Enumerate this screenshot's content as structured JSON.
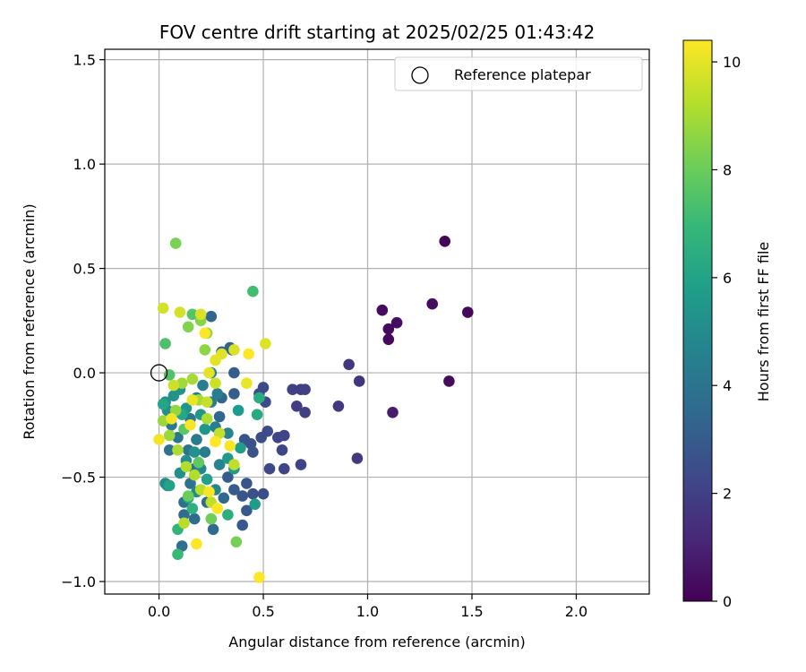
{
  "chart_data": {
    "type": "scatter",
    "title": "FOV centre drift starting at 2025/02/25 01:43:42",
    "xlabel": "Angular distance from reference (arcmin)",
    "ylabel": "Rotation from reference (arcmin)",
    "xlim": [
      -0.26,
      2.35
    ],
    "ylim": [
      -1.06,
      1.55
    ],
    "xticks": [
      0.0,
      0.5,
      1.0,
      1.5,
      2.0
    ],
    "xtick_labels": [
      "0.0",
      "0.5",
      "1.0",
      "1.5",
      "2.0"
    ],
    "yticks": [
      -1.0,
      -0.5,
      0.0,
      0.5,
      1.0,
      1.5
    ],
    "ytick_labels": [
      "−1.0",
      "−0.5",
      "0.0",
      "0.5",
      "1.0",
      "1.5"
    ],
    "grid": true,
    "legend_position": "top-right",
    "legend_entries": [
      "Reference platepar"
    ],
    "reference_point": {
      "x": 0.0,
      "y": 0.0,
      "label": "Reference platepar"
    },
    "colorbar": {
      "label": "Hours from first FF file",
      "colormap": "viridis",
      "range": [
        0,
        10.4
      ],
      "ticks": [
        0,
        2,
        4,
        6,
        8,
        10
      ],
      "tick_labels": [
        "0",
        "2",
        "4",
        "6",
        "8",
        "10"
      ],
      "colors": [
        "#440154",
        "#482878",
        "#3e4989",
        "#31688e",
        "#26828e",
        "#1f9e89",
        "#35b779",
        "#6ece58",
        "#b5de2b",
        "#fde725"
      ]
    },
    "marker_size": 6.3,
    "points": [
      {
        "x": 1.37,
        "y": 0.63,
        "hours": 0.1
      },
      {
        "x": 1.48,
        "y": 0.29,
        "hours": 0.2
      },
      {
        "x": 1.31,
        "y": 0.33,
        "hours": 0.3
      },
      {
        "x": 1.07,
        "y": 0.3,
        "hours": 0.3
      },
      {
        "x": 1.14,
        "y": 0.24,
        "hours": 0.4
      },
      {
        "x": 1.1,
        "y": 0.21,
        "hours": 0.3
      },
      {
        "x": 1.1,
        "y": 0.16,
        "hours": 0.2
      },
      {
        "x": 1.39,
        "y": -0.04,
        "hours": 0.3
      },
      {
        "x": 1.12,
        "y": -0.19,
        "hours": 0.8
      },
      {
        "x": 0.91,
        "y": 0.04,
        "hours": 1.6
      },
      {
        "x": 0.96,
        "y": -0.04,
        "hours": 1.6
      },
      {
        "x": 0.86,
        "y": -0.16,
        "hours": 1.7
      },
      {
        "x": 0.95,
        "y": -0.41,
        "hours": 1.8
      },
      {
        "x": 0.68,
        "y": -0.08,
        "hours": 1.9
      },
      {
        "x": 0.7,
        "y": -0.08,
        "hours": 2.0
      },
      {
        "x": 0.64,
        "y": -0.08,
        "hours": 2.0
      },
      {
        "x": 0.66,
        "y": -0.16,
        "hours": 1.9
      },
      {
        "x": 0.7,
        "y": -0.19,
        "hours": 2.0
      },
      {
        "x": 0.68,
        "y": -0.44,
        "hours": 2.1
      },
      {
        "x": 0.6,
        "y": -0.3,
        "hours": 2.1
      },
      {
        "x": 0.57,
        "y": -0.31,
        "hours": 2.2
      },
      {
        "x": 0.59,
        "y": -0.37,
        "hours": 2.2
      },
      {
        "x": 0.6,
        "y": -0.46,
        "hours": 2.2
      },
      {
        "x": 0.53,
        "y": -0.46,
        "hours": 2.3
      },
      {
        "x": 0.5,
        "y": -0.07,
        "hours": 2.3
      },
      {
        "x": 0.48,
        "y": -0.1,
        "hours": 2.4
      },
      {
        "x": 0.51,
        "y": -0.14,
        "hours": 2.4
      },
      {
        "x": 0.52,
        "y": -0.28,
        "hours": 2.4
      },
      {
        "x": 0.49,
        "y": -0.31,
        "hours": 2.5
      },
      {
        "x": 0.5,
        "y": -0.58,
        "hours": 2.5
      },
      {
        "x": 0.45,
        "y": -0.58,
        "hours": 2.6
      },
      {
        "x": 0.44,
        "y": -0.34,
        "hours": 2.6
      },
      {
        "x": 0.41,
        "y": -0.32,
        "hours": 2.7
      },
      {
        "x": 0.45,
        "y": -0.38,
        "hours": 2.7
      },
      {
        "x": 0.42,
        "y": -0.53,
        "hours": 2.8
      },
      {
        "x": 0.4,
        "y": -0.59,
        "hours": 2.8
      },
      {
        "x": 0.42,
        "y": -0.66,
        "hours": 2.9
      },
      {
        "x": 0.4,
        "y": -0.73,
        "hours": 2.9
      },
      {
        "x": 0.36,
        "y": -0.56,
        "hours": 3.0
      },
      {
        "x": 0.33,
        "y": -0.5,
        "hours": 3.0
      },
      {
        "x": 0.36,
        "y": -0.1,
        "hours": 3.1
      },
      {
        "x": 0.36,
        "y": 0.0,
        "hours": 3.1
      },
      {
        "x": 0.35,
        "y": 0.11,
        "hours": 3.2
      },
      {
        "x": 0.3,
        "y": 0.1,
        "hours": 3.3
      },
      {
        "x": 0.34,
        "y": 0.12,
        "hours": 3.3
      },
      {
        "x": 0.25,
        "y": 0.27,
        "hours": 3.4
      },
      {
        "x": 0.3,
        "y": -0.12,
        "hours": 3.4
      },
      {
        "x": 0.29,
        "y": -0.21,
        "hours": 3.5
      },
      {
        "x": 0.31,
        "y": -0.6,
        "hours": 3.5
      },
      {
        "x": 0.26,
        "y": -0.75,
        "hours": 3.6
      },
      {
        "x": 0.23,
        "y": -0.62,
        "hours": 3.6
      },
      {
        "x": 0.17,
        "y": -0.7,
        "hours": 3.7
      },
      {
        "x": 0.12,
        "y": -0.68,
        "hours": 3.7
      },
      {
        "x": 0.11,
        "y": -0.83,
        "hours": 3.8
      },
      {
        "x": 0.12,
        "y": -0.62,
        "hours": 3.8
      },
      {
        "x": 0.15,
        "y": -0.53,
        "hours": 3.9
      },
      {
        "x": 0.17,
        "y": -0.46,
        "hours": 3.9
      },
      {
        "x": 0.14,
        "y": -0.37,
        "hours": 4.0
      },
      {
        "x": 0.05,
        "y": -0.37,
        "hours": 4.0
      },
      {
        "x": 0.09,
        "y": -0.31,
        "hours": 4.1
      },
      {
        "x": 0.06,
        "y": -0.25,
        "hours": 4.2
      },
      {
        "x": 0.15,
        "y": -0.22,
        "hours": 4.2
      },
      {
        "x": 0.18,
        "y": -0.32,
        "hours": 4.3
      },
      {
        "x": 0.22,
        "y": -0.38,
        "hours": 4.3
      },
      {
        "x": 0.25,
        "y": -0.14,
        "hours": 4.4
      },
      {
        "x": 0.28,
        "y": -0.1,
        "hours": 4.4
      },
      {
        "x": 0.21,
        "y": -0.06,
        "hours": 4.5
      },
      {
        "x": 0.18,
        "y": -0.12,
        "hours": 4.5
      },
      {
        "x": 0.25,
        "y": 0.0,
        "hours": 4.6
      },
      {
        "x": 0.27,
        "y": -0.26,
        "hours": 4.6
      },
      {
        "x": 0.33,
        "y": -0.29,
        "hours": 4.7
      },
      {
        "x": 0.29,
        "y": -0.44,
        "hours": 4.7
      },
      {
        "x": 0.2,
        "y": -0.46,
        "hours": 4.8
      },
      {
        "x": 0.27,
        "y": -0.56,
        "hours": 4.8
      },
      {
        "x": 0.18,
        "y": -0.57,
        "hours": 4.9
      },
      {
        "x": 0.03,
        "y": -0.53,
        "hours": 5.0
      },
      {
        "x": 0.04,
        "y": -0.54,
        "hours": 5.0
      },
      {
        "x": 0.1,
        "y": -0.48,
        "hours": 5.1
      },
      {
        "x": 0.13,
        "y": -0.42,
        "hours": 5.1
      },
      {
        "x": 0.17,
        "y": -0.38,
        "hours": 5.2
      },
      {
        "x": 0.04,
        "y": -0.18,
        "hours": 5.2
      },
      {
        "x": 0.03,
        "y": -0.14,
        "hours": 5.3
      },
      {
        "x": 0.07,
        "y": -0.11,
        "hours": 5.3
      },
      {
        "x": 0.1,
        "y": -0.08,
        "hours": 5.4
      },
      {
        "x": 0.13,
        "y": -0.17,
        "hours": 5.4
      },
      {
        "x": 0.2,
        "y": -0.2,
        "hours": 5.5
      },
      {
        "x": 0.22,
        "y": -0.27,
        "hours": 5.5
      },
      {
        "x": 0.38,
        "y": -0.18,
        "hours": 5.6
      },
      {
        "x": 0.33,
        "y": -0.41,
        "hours": 5.6
      },
      {
        "x": 0.46,
        "y": -0.63,
        "hours": 5.7
      },
      {
        "x": 0.36,
        "y": -0.46,
        "hours": 5.7
      },
      {
        "x": 0.39,
        "y": -0.36,
        "hours": 5.8
      },
      {
        "x": 0.23,
        "y": -0.51,
        "hours": 5.9
      },
      {
        "x": 0.14,
        "y": -0.6,
        "hours": 5.9
      },
      {
        "x": 0.05,
        "y": -0.54,
        "hours": 6.0
      },
      {
        "x": 0.02,
        "y": -0.15,
        "hours": 6.1
      },
      {
        "x": 0.11,
        "y": -0.2,
        "hours": 6.2
      },
      {
        "x": 0.47,
        "y": -0.2,
        "hours": 6.3
      },
      {
        "x": 0.48,
        "y": -0.12,
        "hours": 6.4
      },
      {
        "x": 0.33,
        "y": -0.68,
        "hours": 6.5
      },
      {
        "x": 0.16,
        "y": -0.65,
        "hours": 6.6
      },
      {
        "x": 0.09,
        "y": -0.75,
        "hours": 6.8
      },
      {
        "x": 0.09,
        "y": -0.87,
        "hours": 7.0
      },
      {
        "x": 0.45,
        "y": 0.39,
        "hours": 7.2
      },
      {
        "x": 0.03,
        "y": 0.14,
        "hours": 7.4
      },
      {
        "x": 0.16,
        "y": 0.28,
        "hours": 7.6
      },
      {
        "x": 0.05,
        "y": -0.01,
        "hours": 7.5
      },
      {
        "x": 0.12,
        "y": -0.27,
        "hours": 7.7
      },
      {
        "x": 0.19,
        "y": -0.43,
        "hours": 7.8
      },
      {
        "x": 0.14,
        "y": -0.59,
        "hours": 8.0
      },
      {
        "x": 0.25,
        "y": -0.7,
        "hours": 8.1
      },
      {
        "x": 0.37,
        "y": -0.81,
        "hours": 8.2
      },
      {
        "x": 0.08,
        "y": 0.62,
        "hours": 8.3
      },
      {
        "x": 0.14,
        "y": 0.22,
        "hours": 8.4
      },
      {
        "x": 0.2,
        "y": 0.25,
        "hours": 8.5
      },
      {
        "x": 0.23,
        "y": 0.19,
        "hours": 8.6
      },
      {
        "x": 0.22,
        "y": 0.11,
        "hours": 8.6
      },
      {
        "x": 0.08,
        "y": -0.18,
        "hours": 8.7
      },
      {
        "x": 0.05,
        "y": -0.3,
        "hours": 8.8
      },
      {
        "x": 0.02,
        "y": -0.23,
        "hours": 8.8
      },
      {
        "x": 0.11,
        "y": -0.05,
        "hours": 8.9
      },
      {
        "x": 0.16,
        "y": -0.03,
        "hours": 9.0
      },
      {
        "x": 0.19,
        "y": -0.13,
        "hours": 9.0
      },
      {
        "x": 0.23,
        "y": -0.22,
        "hours": 9.1
      },
      {
        "x": 0.09,
        "y": -0.37,
        "hours": 9.1
      },
      {
        "x": 0.13,
        "y": -0.45,
        "hours": 9.2
      },
      {
        "x": 0.17,
        "y": -0.49,
        "hours": 9.2
      },
      {
        "x": 0.2,
        "y": -0.56,
        "hours": 9.3
      },
      {
        "x": 0.12,
        "y": -0.72,
        "hours": 9.3
      },
      {
        "x": 0.25,
        "y": -0.62,
        "hours": 9.4
      },
      {
        "x": 0.36,
        "y": -0.44,
        "hours": 9.4
      },
      {
        "x": 0.29,
        "y": -0.29,
        "hours": 9.5
      },
      {
        "x": 0.23,
        "y": -0.14,
        "hours": 9.5
      },
      {
        "x": 0.27,
        "y": -0.05,
        "hours": 9.6
      },
      {
        "x": 0.07,
        "y": -0.06,
        "hours": 9.6
      },
      {
        "x": 0.02,
        "y": 0.31,
        "hours": 9.7
      },
      {
        "x": 0.1,
        "y": 0.29,
        "hours": 9.7
      },
      {
        "x": 0.2,
        "y": 0.28,
        "hours": 9.8
      },
      {
        "x": 0.36,
        "y": 0.11,
        "hours": 9.8
      },
      {
        "x": 0.51,
        "y": 0.14,
        "hours": 9.9
      },
      {
        "x": 0.3,
        "y": 0.09,
        "hours": 9.9
      },
      {
        "x": 0.27,
        "y": 0.06,
        "hours": 10.0
      },
      {
        "x": 0.24,
        "y": 0.0,
        "hours": 10.0
      },
      {
        "x": 0.42,
        "y": -0.05,
        "hours": 10.1
      },
      {
        "x": 0.16,
        "y": -0.13,
        "hours": 10.1
      },
      {
        "x": 0.06,
        "y": -0.22,
        "hours": 10.2
      },
      {
        "x": 0.0,
        "y": -0.32,
        "hours": 10.2
      },
      {
        "x": 0.15,
        "y": -0.25,
        "hours": 10.3
      },
      {
        "x": 0.34,
        "y": -0.35,
        "hours": 10.3
      },
      {
        "x": 0.24,
        "y": -0.57,
        "hours": 10.3
      },
      {
        "x": 0.28,
        "y": -0.65,
        "hours": 10.4
      },
      {
        "x": 0.18,
        "y": -0.82,
        "hours": 10.4
      },
      {
        "x": 0.48,
        "y": -0.98,
        "hours": 10.4
      },
      {
        "x": 0.43,
        "y": 0.09,
        "hours": 10.4
      },
      {
        "x": 0.22,
        "y": 0.19,
        "hours": 10.4
      },
      {
        "x": 0.27,
        "y": -0.33,
        "hours": 10.4
      }
    ]
  }
}
